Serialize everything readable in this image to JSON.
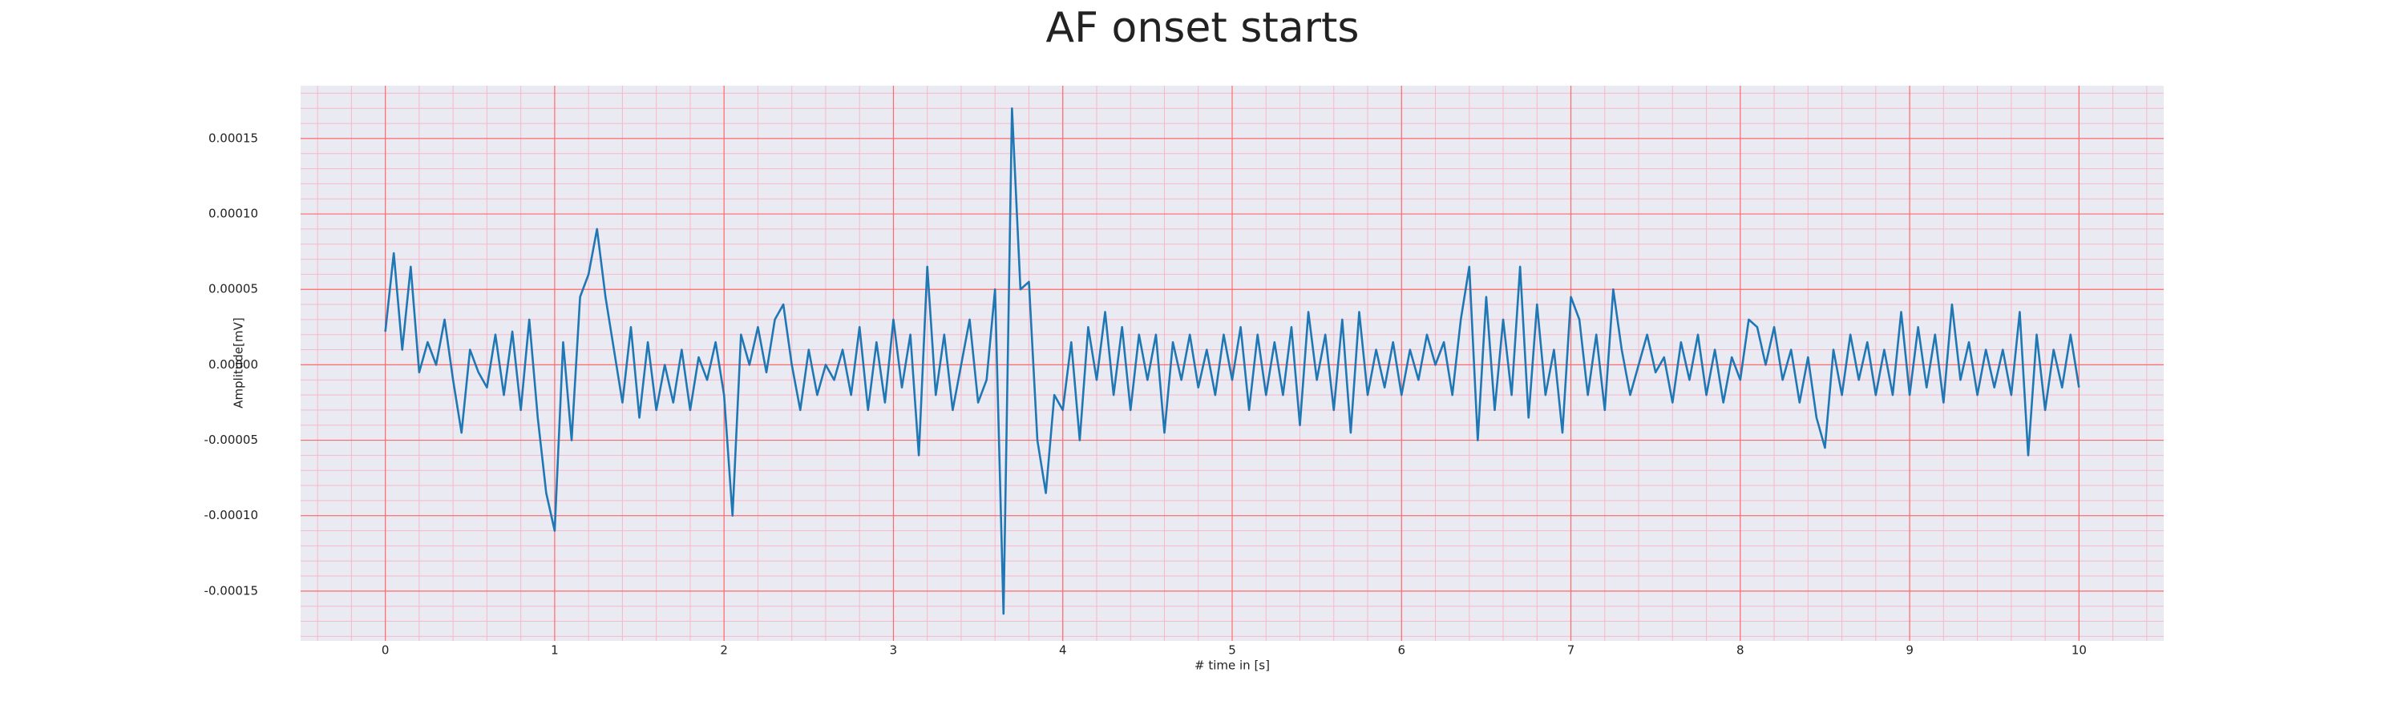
{
  "chart_data": {
    "type": "line",
    "title": "AF onset starts",
    "xlabel": "# time in [s]",
    "ylabel": "Amplitude[mV]",
    "xlim": [
      -0.5,
      10.5
    ],
    "ylim": [
      -0.000183,
      0.000185
    ],
    "xticks": [
      0,
      1,
      2,
      3,
      4,
      5,
      6,
      7,
      8,
      9,
      10
    ],
    "yticks": [
      {
        "value": -0.00015,
        "label": "-0.00015"
      },
      {
        "value": -0.0001,
        "label": "-0.00010"
      },
      {
        "value": -5e-05,
        "label": "-0.00005"
      },
      {
        "value": 0,
        "label": "0.00000"
      },
      {
        "value": 5e-05,
        "label": "0.00005"
      },
      {
        "value": 0.0001,
        "label": "0.00010"
      },
      {
        "value": 0.00015,
        "label": "0.00015"
      }
    ],
    "grid": true,
    "grid_color": "#ff6b6b",
    "minor_grid": {
      "x_step": 0.2,
      "y_step": 1e-05,
      "color": "#f7b8c8"
    },
    "background": "#eaeaf2",
    "x": [
      0,
      0.05,
      0.1,
      0.15,
      0.2,
      0.25,
      0.3,
      0.35,
      0.4,
      0.45,
      0.5,
      0.55,
      0.6,
      0.65,
      0.7,
      0.75,
      0.8,
      0.85,
      0.9,
      0.95,
      1,
      1.05,
      1.1,
      1.15,
      1.2,
      1.25,
      1.3,
      1.35,
      1.4,
      1.45,
      1.5,
      1.55,
      1.6,
      1.65,
      1.7,
      1.75,
      1.8,
      1.85,
      1.9,
      1.95,
      2,
      2.05,
      2.1,
      2.15,
      2.2,
      2.25,
      2.3,
      2.35,
      2.4,
      2.45,
      2.5,
      2.55,
      2.6,
      2.65,
      2.7,
      2.75,
      2.8,
      2.85,
      2.9,
      2.95,
      3,
      3.05,
      3.1,
      3.15,
      3.2,
      3.25,
      3.3,
      3.35,
      3.4,
      3.45,
      3.5,
      3.55,
      3.6,
      3.65,
      3.7,
      3.75,
      3.8,
      3.85,
      3.9,
      3.95,
      4,
      4.05,
      4.1,
      4.15,
      4.2,
      4.25,
      4.3,
      4.35,
      4.4,
      4.45,
      4.5,
      4.55,
      4.6,
      4.65,
      4.7,
      4.75,
      4.8,
      4.85,
      4.9,
      4.95,
      5,
      5.05,
      5.1,
      5.15,
      5.2,
      5.25,
      5.3,
      5.35,
      5.4,
      5.45,
      5.5,
      5.55,
      5.6,
      5.65,
      5.7,
      5.75,
      5.8,
      5.85,
      5.9,
      5.95,
      6,
      6.05,
      6.1,
      6.15,
      6.2,
      6.25,
      6.3,
      6.35,
      6.4,
      6.45,
      6.5,
      6.55,
      6.6,
      6.65,
      6.7,
      6.75,
      6.8,
      6.85,
      6.9,
      6.95,
      7,
      7.05,
      7.1,
      7.15,
      7.2,
      7.25,
      7.3,
      7.35,
      7.4,
      7.45,
      7.5,
      7.55,
      7.6,
      7.65,
      7.7,
      7.75,
      7.8,
      7.85,
      7.9,
      7.95,
      8,
      8.05,
      8.1,
      8.15,
      8.2,
      8.25,
      8.3,
      8.35,
      8.4,
      8.45,
      8.5,
      8.55,
      8.6,
      8.65,
      8.7,
      8.75,
      8.8,
      8.85,
      8.9,
      8.95,
      9,
      9.05,
      9.1,
      9.15,
      9.2,
      9.25,
      9.3,
      9.35,
      9.4,
      9.45,
      9.5,
      9.55,
      9.6,
      9.65,
      9.7,
      9.75,
      9.8,
      9.85,
      9.9,
      9.95,
      10
    ],
    "series": [
      {
        "color": "#1f77b4",
        "values": [
          2.2e-05,
          7.4e-05,
          1e-05,
          6.5e-05,
          -5e-06,
          1.5e-05,
          0,
          3e-05,
          -1e-05,
          -4.5e-05,
          1e-05,
          -5e-06,
          -1.5e-05,
          2e-05,
          -2e-05,
          2.2e-05,
          -3e-05,
          3e-05,
          -3.5e-05,
          -8.5e-05,
          -0.00011,
          1.5e-05,
          -5e-05,
          4.5e-05,
          6e-05,
          9e-05,
          4.5e-05,
          1e-05,
          -2.5e-05,
          2.5e-05,
          -3.5e-05,
          1.5e-05,
          -3e-05,
          0,
          -2.5e-05,
          1e-05,
          -3e-05,
          5e-06,
          -1e-05,
          1.5e-05,
          -2e-05,
          -0.0001,
          2e-05,
          0,
          2.5e-05,
          -5e-06,
          3e-05,
          4e-05,
          0,
          -3e-05,
          1e-05,
          -2e-05,
          0,
          -1e-05,
          1e-05,
          -2e-05,
          2.5e-05,
          -3e-05,
          1.5e-05,
          -2.5e-05,
          3e-05,
          -1.5e-05,
          2e-05,
          -6e-05,
          6.5e-05,
          -2e-05,
          2e-05,
          -3e-05,
          0,
          3e-05,
          -2.5e-05,
          -1e-05,
          5e-05,
          -0.000165,
          0.00017,
          5e-05,
          5.5e-05,
          -5e-05,
          -8.5e-05,
          -2e-05,
          -3e-05,
          1.5e-05,
          -5e-05,
          2.5e-05,
          -1e-05,
          3.5e-05,
          -2e-05,
          2.5e-05,
          -3e-05,
          2e-05,
          -1e-05,
          2e-05,
          -4.5e-05,
          1.5e-05,
          -1e-05,
          2e-05,
          -1.5e-05,
          1e-05,
          -2e-05,
          2e-05,
          -1e-05,
          2.5e-05,
          -3e-05,
          2e-05,
          -2e-05,
          1.5e-05,
          -2e-05,
          2.5e-05,
          -4e-05,
          3.5e-05,
          -1e-05,
          2e-05,
          -3e-05,
          3e-05,
          -4.5e-05,
          3.5e-05,
          -2e-05,
          1e-05,
          -1.5e-05,
          1.5e-05,
          -2e-05,
          1e-05,
          -1e-05,
          2e-05,
          0,
          1.5e-05,
          -2e-05,
          3e-05,
          6.5e-05,
          -5e-05,
          4.5e-05,
          -3e-05,
          3e-05,
          -2e-05,
          6.5e-05,
          -3.5e-05,
          4e-05,
          -2e-05,
          1e-05,
          -4.5e-05,
          4.5e-05,
          3e-05,
          -2e-05,
          2e-05,
          -3e-05,
          5e-05,
          1e-05,
          -2e-05,
          0,
          2e-05,
          -5e-06,
          5e-06,
          -2.5e-05,
          1.5e-05,
          -1e-05,
          2e-05,
          -2e-05,
          1e-05,
          -2.5e-05,
          5e-06,
          -1e-05,
          3e-05,
          2.5e-05,
          0,
          2.5e-05,
          -1e-05,
          1e-05,
          -2.5e-05,
          5e-06,
          -3.5e-05,
          -5.5e-05,
          1e-05,
          -2e-05,
          2e-05,
          -1e-05,
          1.5e-05,
          -2e-05,
          1e-05,
          -2e-05,
          3.5e-05,
          -2e-05,
          2.5e-05,
          -1.5e-05,
          2e-05,
          -2.5e-05,
          4e-05,
          -1e-05,
          1.5e-05,
          -2e-05,
          1e-05,
          -1.5e-05,
          1e-05,
          -2e-05,
          3.5e-05,
          -6e-05,
          2e-05,
          -3e-05,
          1e-05,
          -1.5e-05,
          2e-05,
          -1.5e-05
        ]
      }
    ]
  }
}
